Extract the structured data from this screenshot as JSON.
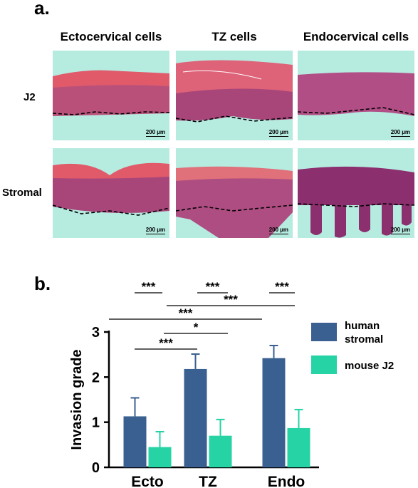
{
  "panel_a": {
    "letter": "a.",
    "columns": [
      "Ectocervical cells",
      "TZ cells",
      "Endocervical cells"
    ],
    "rows": [
      "J2",
      "Stromal"
    ],
    "scale_label": "200 µm"
  },
  "panel_b": {
    "letter": "b."
  },
  "colors": {
    "human_stromal": "#3a5f91",
    "mouse_j2": "#26d3a4",
    "tissue_bg": "#b6ebe0",
    "epithelium_pink": "#d4607a",
    "epithelium_purple": "#9a3d78",
    "keratin": "#e05a6a"
  },
  "chart_data": {
    "type": "bar",
    "categories": [
      "Ecto",
      "TZ",
      "Endo"
    ],
    "series": [
      {
        "name": "human stromal",
        "values": [
          1.13,
          2.18,
          2.42
        ],
        "errors": [
          0.41,
          0.33,
          0.28
        ]
      },
      {
        "name": "mouse J2",
        "values": [
          0.45,
          0.7,
          0.87
        ],
        "errors": [
          0.34,
          0.36,
          0.41
        ]
      }
    ],
    "ylabel": "Invasion grade",
    "xlabel": "",
    "ylim": [
      0,
      3
    ],
    "yticks": [
      "0",
      "1",
      "2",
      "3"
    ],
    "legend": {
      "placement": "right",
      "entries": [
        "human",
        "stromal",
        "mouse J2"
      ]
    },
    "significance": [
      {
        "label": "***",
        "from": "Ecto human stromal",
        "to": "Ecto mouse J2"
      },
      {
        "label": "***",
        "from": "TZ human stromal",
        "to": "TZ mouse J2"
      },
      {
        "label": "***",
        "from": "Endo human stromal",
        "to": "Endo mouse J2"
      },
      {
        "label": "***",
        "from": "Ecto mouse J2",
        "to": "Endo mouse J2"
      },
      {
        "label": "***",
        "from": "Ecto human stromal",
        "to": "Endo human stromal"
      },
      {
        "label": "*",
        "from": "Ecto mouse J2",
        "to": "TZ mouse J2"
      },
      {
        "label": "***",
        "from": "Ecto human stromal",
        "to": "TZ human stromal"
      }
    ]
  }
}
